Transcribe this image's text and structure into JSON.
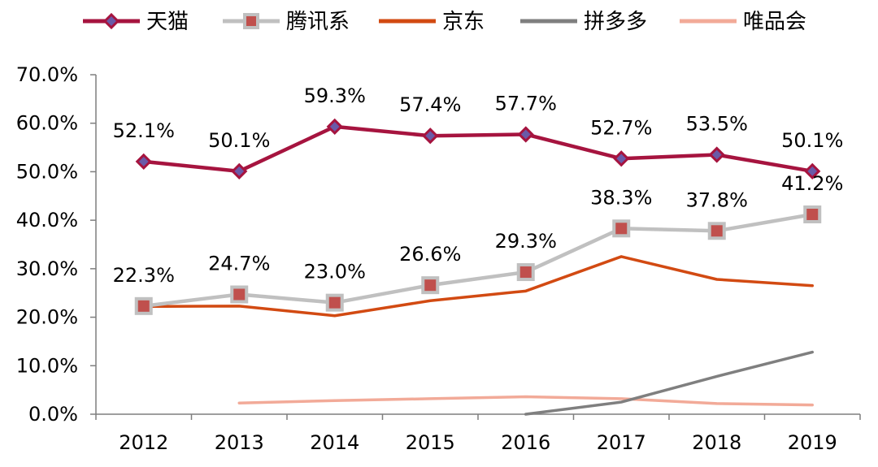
{
  "chart_data": {
    "type": "line",
    "categories": [
      "2012",
      "2013",
      "2014",
      "2015",
      "2016",
      "2017",
      "2018",
      "2019"
    ],
    "y_ticks": [
      "0.0%",
      "10.0%",
      "20.0%",
      "30.0%",
      "40.0%",
      "50.0%",
      "60.0%",
      "70.0%"
    ],
    "ylim": [
      0,
      70
    ],
    "legend_position": "top",
    "grid": false,
    "series": [
      {
        "name": "天猫",
        "color": "#a6143f",
        "marker": "diamond",
        "values": [
          52.1,
          50.1,
          59.3,
          57.4,
          57.7,
          52.7,
          53.5,
          50.1
        ],
        "labels": [
          "52.1%",
          "50.1%",
          "59.3%",
          "57.4%",
          "57.7%",
          "52.7%",
          "53.5%",
          "50.1%"
        ]
      },
      {
        "name": "腾讯系",
        "color": "#c0c0c0",
        "marker": "square",
        "values": [
          22.3,
          24.7,
          23.0,
          26.6,
          29.3,
          38.3,
          37.8,
          41.2
        ],
        "labels": [
          "22.3%",
          "24.7%",
          "23.0%",
          "26.6%",
          "29.3%",
          "38.3%",
          "37.8%",
          "41.2%"
        ]
      },
      {
        "name": "京东",
        "color": "#d24a12",
        "marker": "none",
        "values": [
          22.2,
          22.3,
          20.3,
          23.4,
          25.4,
          32.5,
          27.8,
          26.5
        ],
        "labels": []
      },
      {
        "name": "拼多多",
        "color": "#7f7f7f",
        "marker": "none",
        "values": [
          null,
          null,
          null,
          null,
          0,
          2.5,
          7.8,
          12.8
        ],
        "labels": []
      },
      {
        "name": "唯品会",
        "color": "#f2aa98",
        "marker": "none",
        "values": [
          null,
          2.3,
          2.8,
          3.2,
          3.6,
          3.2,
          2.2,
          1.9
        ],
        "labels": []
      }
    ]
  }
}
